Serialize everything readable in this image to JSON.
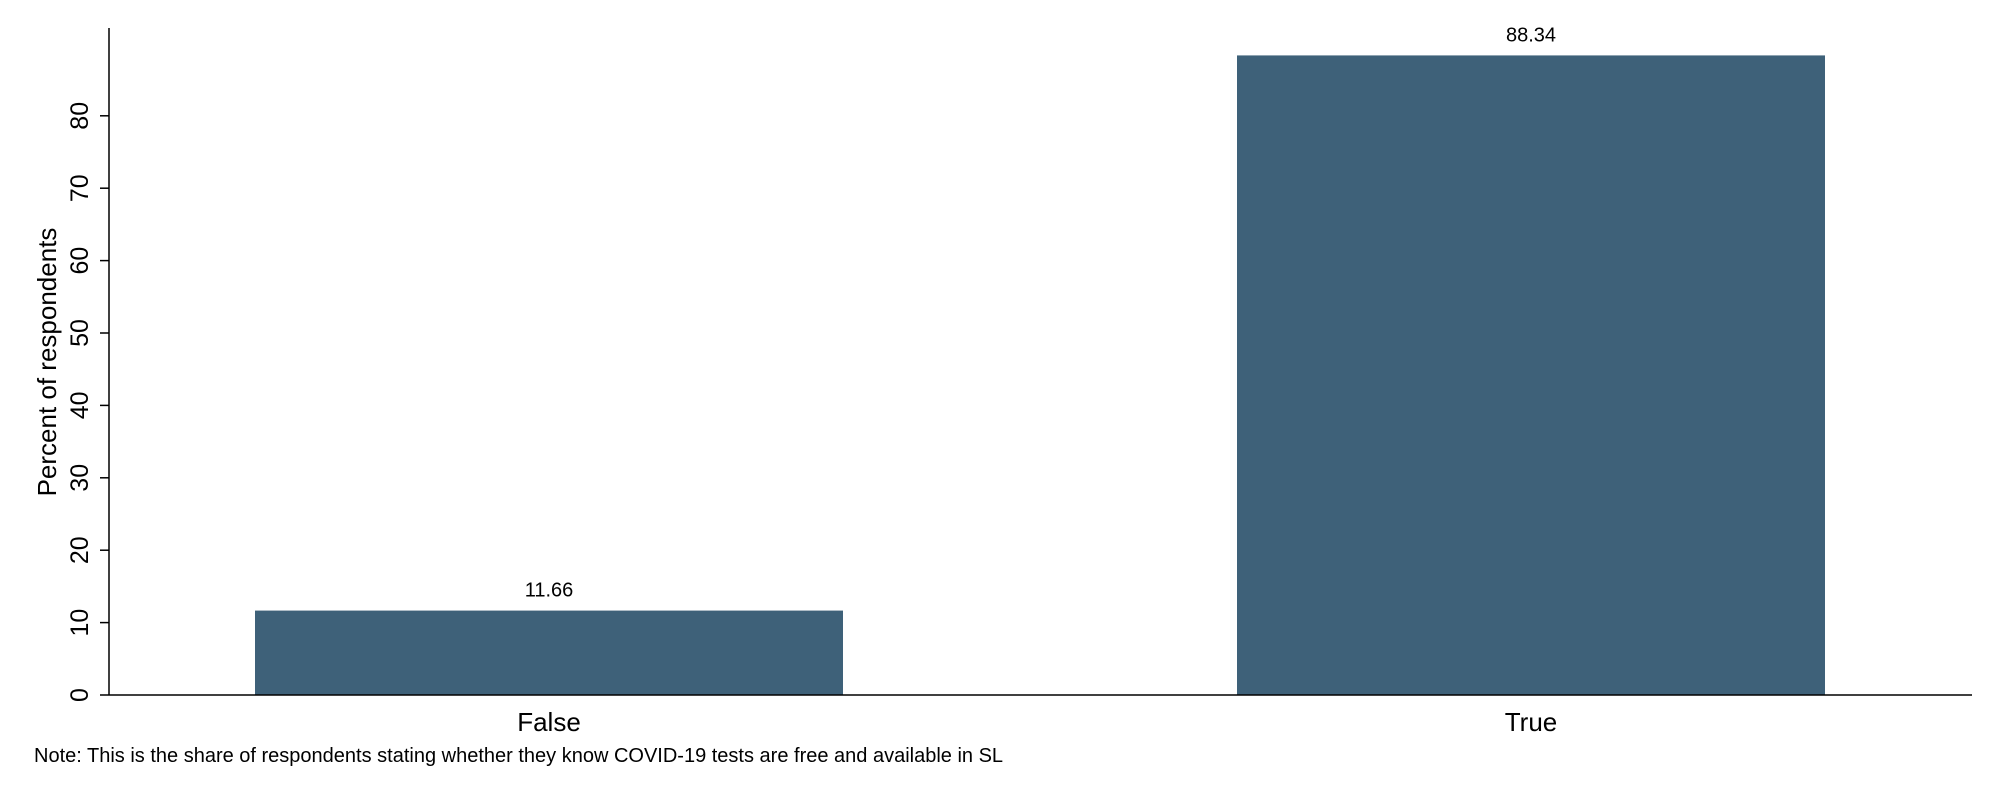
{
  "chart_data": {
    "type": "bar",
    "categories": [
      "False",
      "True"
    ],
    "values": [
      11.66,
      88.34
    ],
    "value_labels": [
      "11.66",
      "88.34"
    ],
    "title": "",
    "xlabel": "",
    "ylabel": "Percent of respondents",
    "ylim": [
      0,
      92
    ],
    "yticks": [
      0,
      10,
      20,
      30,
      40,
      50,
      60,
      70,
      80
    ],
    "grid": false,
    "bar_color": "#3e6179",
    "note": "Note: This is the share of respondents stating whether they know COVID-19 tests are free and available in SL"
  }
}
